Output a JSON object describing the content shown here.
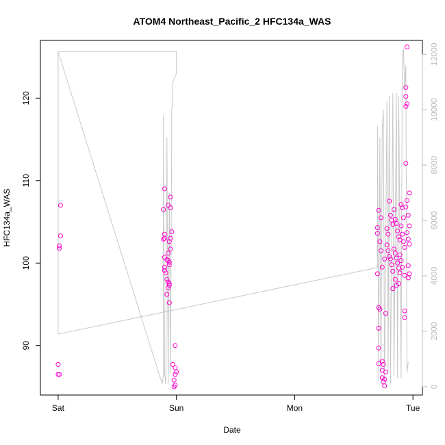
{
  "chart_data": {
    "type": "scatter",
    "title": "ATOM4 Northeast_Pacific_2 HFC134a_WAS",
    "xlabel": "Date",
    "ylabel": "HFC134a_WAS",
    "x_ticks": [
      "Sat",
      "Sun",
      "Mon",
      "Tue"
    ],
    "xlim_days": [
      -0.15,
      3.08
    ],
    "y_ticks": [
      90,
      100,
      110,
      120
    ],
    "ylim": [
      84,
      127
    ],
    "y2_ticks": [
      0,
      2000,
      4000,
      6000,
      8000,
      10000,
      12000
    ],
    "y2lim": [
      -300,
      12500
    ],
    "series": [
      {
        "color": "#ff00cc",
        "marker": "open-circle",
        "points": [
          [
            0.02,
            107.0
          ],
          [
            0.02,
            103.3
          ],
          [
            0.01,
            102.1
          ],
          [
            0.01,
            101.8
          ],
          [
            0.0,
            87.7
          ],
          [
            0.0,
            86.5
          ],
          [
            0.01,
            86.5
          ],
          [
            0.9,
            109.0
          ],
          [
            0.93,
            107.0
          ],
          [
            0.89,
            106.5
          ],
          [
            0.95,
            106.7
          ],
          [
            0.95,
            108.0
          ],
          [
            0.9,
            103.5
          ],
          [
            0.89,
            102.9
          ],
          [
            0.9,
            103.0
          ],
          [
            0.96,
            103.8
          ],
          [
            0.95,
            103.0
          ],
          [
            0.94,
            102.6
          ],
          [
            0.95,
            101.7
          ],
          [
            0.9,
            100.7
          ],
          [
            0.92,
            100.4
          ],
          [
            0.93,
            100.3
          ],
          [
            0.93,
            101.2
          ],
          [
            0.94,
            100.1
          ],
          [
            0.94,
            99.8
          ],
          [
            0.9,
            99.5
          ],
          [
            0.9,
            99.1
          ],
          [
            0.91,
            98.8
          ],
          [
            0.92,
            98.0
          ],
          [
            0.93,
            97.7
          ],
          [
            0.94,
            97.5
          ],
          [
            0.94,
            97.3
          ],
          [
            0.93,
            97.0
          ],
          [
            0.92,
            96.2
          ],
          [
            0.94,
            95.2
          ],
          [
            0.97,
            87.7
          ],
          [
            0.99,
            87.3
          ],
          [
            1.0,
            86.8
          ],
          [
            0.99,
            86.5
          ],
          [
            0.98,
            85.8
          ],
          [
            0.99,
            85.2
          ],
          [
            0.98,
            85.0
          ],
          [
            0.99,
            90.0
          ],
          [
            2.7,
            104.3
          ],
          [
            2.71,
            106.4
          ],
          [
            2.73,
            105.5
          ],
          [
            2.7,
            103.6
          ],
          [
            2.72,
            102.6
          ],
          [
            2.73,
            101.5
          ],
          [
            2.76,
            100.5
          ],
          [
            2.74,
            99.5
          ],
          [
            2.7,
            98.7
          ],
          [
            2.71,
            94.6
          ],
          [
            2.72,
            94.4
          ],
          [
            2.71,
            92.1
          ],
          [
            2.71,
            89.7
          ],
          [
            2.71,
            87.8
          ],
          [
            2.74,
            88.1
          ],
          [
            2.75,
            87.7
          ],
          [
            2.74,
            87.0
          ],
          [
            2.77,
            86.8
          ],
          [
            2.74,
            86.1
          ],
          [
            2.76,
            85.9
          ],
          [
            2.75,
            85.6
          ],
          [
            2.76,
            85.1
          ],
          [
            2.78,
            104.2
          ],
          [
            2.79,
            103.5
          ],
          [
            2.8,
            107.5
          ],
          [
            2.81,
            105.8
          ],
          [
            2.82,
            105.2
          ],
          [
            2.83,
            104.7
          ],
          [
            2.78,
            102.2
          ],
          [
            2.79,
            101.5
          ],
          [
            2.8,
            100.8
          ],
          [
            2.81,
            100.5
          ],
          [
            2.82,
            99.8
          ],
          [
            2.83,
            99.0
          ],
          [
            2.77,
            93.9
          ],
          [
            2.84,
            106.5
          ],
          [
            2.85,
            105.3
          ],
          [
            2.86,
            104.8
          ],
          [
            2.87,
            103.9
          ],
          [
            2.88,
            103.2
          ],
          [
            2.89,
            102.8
          ],
          [
            2.84,
            101.7
          ],
          [
            2.85,
            101.2
          ],
          [
            2.86,
            100.6
          ],
          [
            2.87,
            100.0
          ],
          [
            2.88,
            99.4
          ],
          [
            2.89,
            98.8
          ],
          [
            2.85,
            98.0
          ],
          [
            2.86,
            97.3
          ],
          [
            2.83,
            96.9
          ],
          [
            2.9,
            107.1
          ],
          [
            2.91,
            106.7
          ],
          [
            2.92,
            105.5
          ],
          [
            2.9,
            104.5
          ],
          [
            2.91,
            103.5
          ],
          [
            2.92,
            102.6
          ],
          [
            2.93,
            101.9
          ],
          [
            2.89,
            101.0
          ],
          [
            2.9,
            100.3
          ],
          [
            2.91,
            99.5
          ],
          [
            2.88,
            97.5
          ],
          [
            2.94,
            121.3
          ],
          [
            2.94,
            120.2
          ],
          [
            2.95,
            119.3
          ],
          [
            2.94,
            119.0
          ],
          [
            2.94,
            112.1
          ],
          [
            2.95,
            107.6
          ],
          [
            2.94,
            106.8
          ],
          [
            2.96,
            105.8
          ],
          [
            2.97,
            104.5
          ],
          [
            2.95,
            103.7
          ],
          [
            2.96,
            102.9
          ],
          [
            2.97,
            102.3
          ],
          [
            2.93,
            94.2
          ],
          [
            2.93,
            93.4
          ],
          [
            2.96,
            99.7
          ],
          [
            2.97,
            98.7
          ],
          [
            2.96,
            98.2
          ],
          [
            2.97,
            108.5
          ],
          [
            2.95,
            126.2
          ],
          [
            2.93,
            98.5
          ]
        ]
      },
      {
        "color": "#c8c8c8",
        "marker": "line",
        "axis": "right",
        "points": [
          [
            0.0,
            12100
          ],
          [
            1.0,
            12100
          ],
          [
            1.0,
            11300
          ],
          [
            0.97,
            11000
          ],
          [
            0.97,
            10500
          ],
          [
            0.96,
            10000
          ],
          [
            0.96,
            9000
          ],
          [
            0.95,
            500
          ],
          [
            0.94,
            7000
          ],
          [
            0.93,
            100
          ],
          [
            0.92,
            9000
          ],
          [
            0.91,
            100
          ],
          [
            0.9,
            500
          ],
          [
            0.89,
            9800
          ],
          [
            0.89,
            400
          ],
          [
            0.88,
            100
          ],
          [
            0.0,
            12100
          ],
          [
            0.0,
            1900
          ],
          [
            2.7,
            4300
          ],
          [
            2.7,
            9400
          ],
          [
            2.71,
            200
          ],
          [
            2.72,
            9000
          ],
          [
            2.73,
            200
          ],
          [
            2.74,
            9300
          ],
          [
            2.75,
            10000
          ],
          [
            2.76,
            200
          ],
          [
            2.78,
            10300
          ],
          [
            2.79,
            500
          ],
          [
            2.8,
            10500
          ],
          [
            2.81,
            100
          ],
          [
            2.83,
            10600
          ],
          [
            2.84,
            400
          ],
          [
            2.86,
            10600
          ],
          [
            2.87,
            300
          ],
          [
            2.88,
            10500
          ],
          [
            2.9,
            300
          ],
          [
            2.91,
            12000
          ],
          [
            2.92,
            12200
          ],
          [
            2.93,
            10700
          ],
          [
            2.94,
            11600
          ],
          [
            2.95,
            500
          ],
          [
            2.96,
            900
          ]
        ]
      }
    ]
  }
}
